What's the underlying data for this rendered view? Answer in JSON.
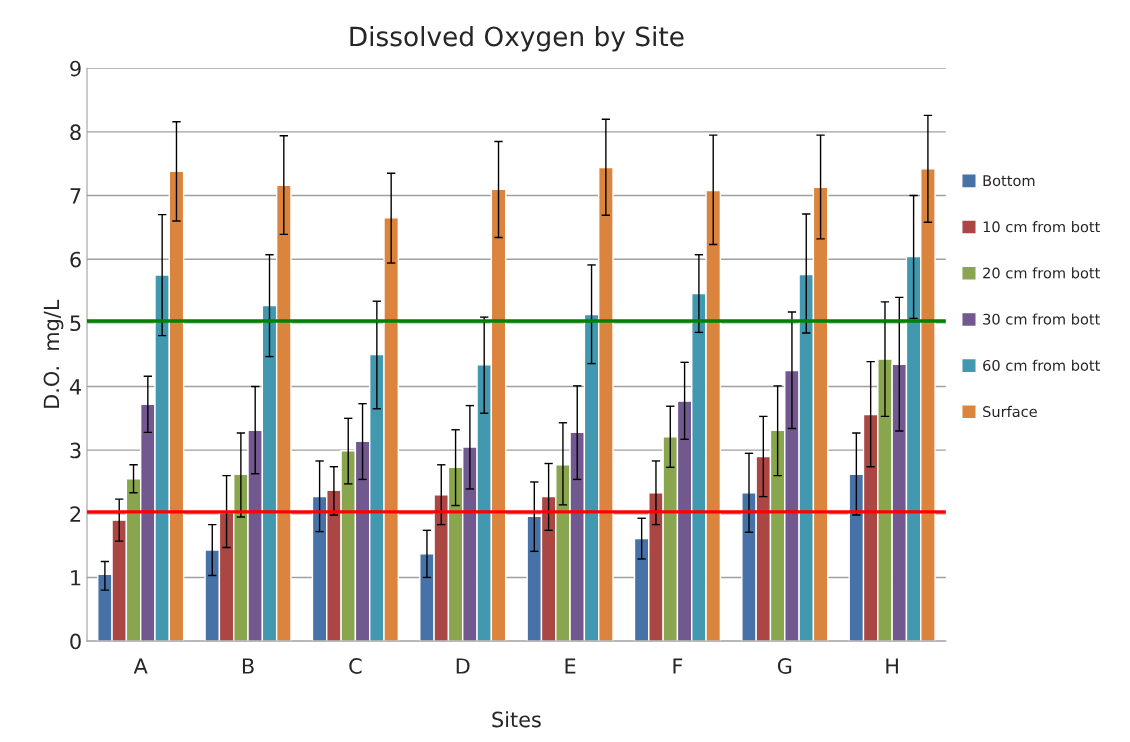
{
  "chart_data": {
    "type": "bar",
    "title": "Dissolved Oxygen by Site",
    "xlabel": "Sites",
    "ylabel": "D.O.  mg/L",
    "categories": [
      "A",
      "B",
      "C",
      "D",
      "E",
      "F",
      "G",
      "H"
    ],
    "series": [
      {
        "name": "Bottom",
        "color": "#4672a8",
        "values": [
          1.05,
          1.43,
          2.27,
          1.37,
          1.96,
          1.61,
          2.33,
          2.62
        ],
        "errors": [
          [
            0.8,
            1.25
          ],
          [
            1.03,
            1.83
          ],
          [
            1.72,
            2.83
          ],
          [
            1.0,
            1.74
          ],
          [
            1.41,
            2.5
          ],
          [
            1.29,
            1.93
          ],
          [
            1.71,
            2.95
          ],
          [
            1.98,
            3.27
          ]
        ]
      },
      {
        "name": "10 cm from bott",
        "color": "#aa4643",
        "values": [
          1.9,
          2.02,
          2.37,
          2.3,
          2.27,
          2.33,
          2.9,
          3.56
        ],
        "errors": [
          [
            1.57,
            2.23
          ],
          [
            1.47,
            2.6
          ],
          [
            1.98,
            2.74
          ],
          [
            1.83,
            2.77
          ],
          [
            1.74,
            2.79
          ],
          [
            1.83,
            2.83
          ],
          [
            2.27,
            3.53
          ],
          [
            2.74,
            4.39
          ]
        ]
      },
      {
        "name": "20 cm from bott",
        "color": "#89a54e",
        "values": [
          2.55,
          2.62,
          2.99,
          2.73,
          2.77,
          3.21,
          3.31,
          4.43
        ],
        "errors": [
          [
            2.33,
            2.77
          ],
          [
            1.95,
            3.27
          ],
          [
            2.47,
            3.5
          ],
          [
            2.13,
            3.32
          ],
          [
            2.14,
            3.43
          ],
          [
            2.73,
            3.69
          ],
          [
            2.6,
            4.01
          ],
          [
            3.53,
            5.33
          ]
        ]
      },
      {
        "name": "30 cm from bott",
        "color": "#71588f",
        "values": [
          3.72,
          3.31,
          3.14,
          3.05,
          3.28,
          3.77,
          4.25,
          4.35
        ],
        "errors": [
          [
            3.28,
            4.16
          ],
          [
            2.63,
            4.0
          ],
          [
            2.54,
            3.73
          ],
          [
            2.39,
            3.7
          ],
          [
            2.54,
            4.01
          ],
          [
            3.17,
            4.38
          ],
          [
            3.34,
            5.17
          ],
          [
            3.3,
            5.4
          ]
        ]
      },
      {
        "name": "60 cm from bott",
        "color": "#4198af",
        "values": [
          5.75,
          5.27,
          4.5,
          4.34,
          5.13,
          5.46,
          5.76,
          6.04
        ],
        "errors": [
          [
            4.8,
            6.7
          ],
          [
            4.47,
            6.07
          ],
          [
            3.65,
            5.34
          ],
          [
            3.58,
            5.09
          ],
          [
            4.36,
            5.91
          ],
          [
            4.85,
            6.07
          ],
          [
            4.84,
            6.71
          ],
          [
            5.07,
            7.0
          ]
        ]
      },
      {
        "name": "Surface",
        "color": "#db843d",
        "values": [
          7.38,
          7.16,
          6.65,
          7.1,
          7.44,
          7.08,
          7.13,
          7.42
        ],
        "errors": [
          [
            6.6,
            8.16
          ],
          [
            6.39,
            7.94
          ],
          [
            5.94,
            7.35
          ],
          [
            6.34,
            7.85
          ],
          [
            6.69,
            8.2
          ],
          [
            6.23,
            7.95
          ],
          [
            6.32,
            7.95
          ],
          [
            6.58,
            8.26
          ]
        ]
      }
    ],
    "ref_lines": [
      {
        "axis": "y",
        "value": 2.03,
        "color": "#ff0000"
      },
      {
        "axis": "y",
        "value": 5.03,
        "color": "#008000"
      }
    ],
    "ylim": [
      0,
      9
    ],
    "yticks": [
      0,
      1,
      2,
      3,
      4,
      5,
      6,
      7,
      8,
      9
    ],
    "grid": "y",
    "legend": "right"
  }
}
